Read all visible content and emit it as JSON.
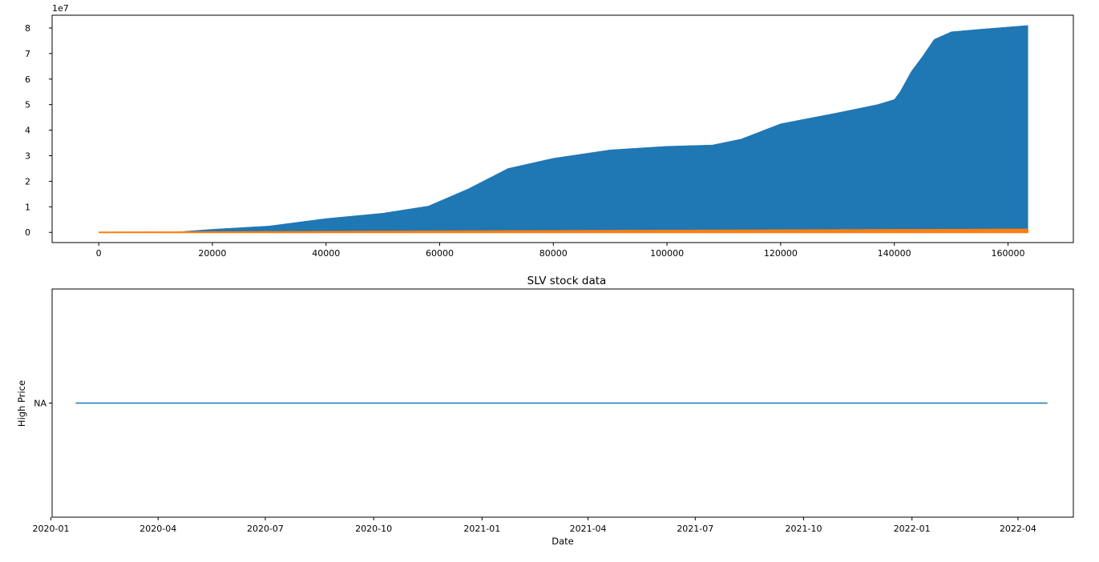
{
  "chart_data": [
    {
      "type": "area",
      "title": "",
      "xlabel": "",
      "ylabel": "",
      "y_offset_text": "1e7",
      "xlim": [
        -8200,
        171500
      ],
      "ylim": [
        -4000000,
        85000000
      ],
      "x_ticks": [
        0,
        20000,
        40000,
        60000,
        80000,
        100000,
        120000,
        140000,
        160000
      ],
      "x_tick_labels": [
        "0",
        "20000",
        "40000",
        "60000",
        "80000",
        "100000",
        "120000",
        "140000",
        "160000"
      ],
      "y_ticks": [
        0,
        10000000,
        20000000,
        30000000,
        40000000,
        50000000,
        60000000,
        70000000,
        80000000
      ],
      "y_tick_labels": [
        "0",
        "1",
        "2",
        "3",
        "4",
        "5",
        "6",
        "7",
        "8"
      ],
      "grid": false,
      "series": [
        {
          "color": "#1f77b4",
          "x": [
            0,
            10000,
            14000,
            20000,
            30000,
            40000,
            50000,
            58000,
            65000,
            72000,
            80000,
            90000,
            100000,
            108000,
            113000,
            120000,
            130000,
            137000,
            140000,
            141000,
            143000,
            145000,
            147000,
            150000,
            155000,
            163500
          ],
          "y": [
            0,
            0,
            200000,
            1200000,
            2500000,
            5400000,
            7500000,
            10300000,
            17000000,
            25000000,
            29000000,
            32300000,
            33700000,
            34200000,
            36500000,
            42500000,
            46800000,
            50000000,
            52000000,
            55000000,
            63000000,
            69000000,
            75500000,
            78500000,
            79500000,
            81000000
          ]
        },
        {
          "color": "#ff7f0e",
          "x": [
            0,
            14000,
            40000,
            80000,
            120000,
            140000,
            163500
          ],
          "y": [
            0,
            100000,
            300000,
            650000,
            900000,
            1050000,
            1200000
          ]
        }
      ]
    },
    {
      "type": "line",
      "title": "SLV stock data",
      "xlabel": "Date",
      "ylabel": "High Price",
      "xlim": [
        "2020-01-02",
        "2022-05-18"
      ],
      "x_ticks": [
        "2020-01-01",
        "2020-04-01",
        "2020-07-01",
        "2020-10-01",
        "2021-01-01",
        "2021-04-01",
        "2021-07-01",
        "2021-10-01",
        "2022-01-01",
        "2022-04-01"
      ],
      "x_tick_labels": [
        "2020-01",
        "2020-04",
        "2020-07",
        "2020-10",
        "2021-01",
        "2021-04",
        "2021-07",
        "2021-10",
        "2022-01",
        "2022-04"
      ],
      "y_categories": [
        "NA"
      ],
      "grid": false,
      "series": [
        {
          "color": "#1f77b4",
          "x": [
            "2020-01-22",
            "2022-04-26"
          ],
          "y": [
            "NA",
            "NA"
          ]
        }
      ]
    }
  ]
}
